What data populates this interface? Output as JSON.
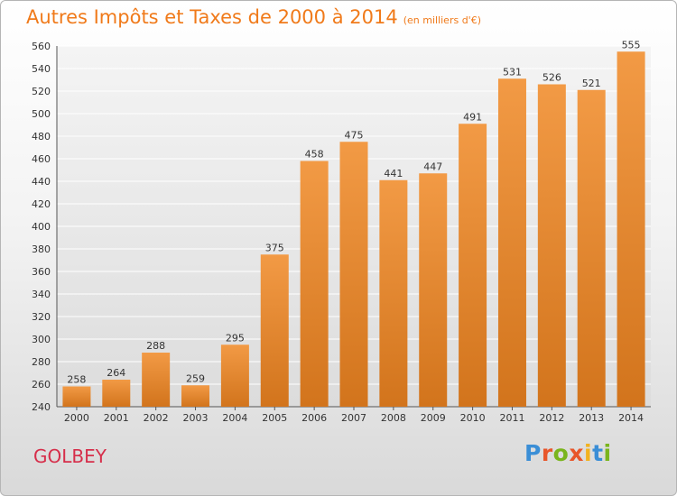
{
  "title": "Autres Impôts et Taxes de 2000 à 2014",
  "unit": "(en milliers d'€)",
  "city": "GOLBEY",
  "logo": "Proxiti",
  "colors": {
    "bar": "#f29a45",
    "bar_dark": "#d2741c",
    "title": "#f07a1a",
    "city": "#d62e4a"
  },
  "chart_data": {
    "type": "bar",
    "categories": [
      "2000",
      "2001",
      "2002",
      "2003",
      "2004",
      "2005",
      "2006",
      "2007",
      "2008",
      "2009",
      "2010",
      "2011",
      "2012",
      "2013",
      "2014"
    ],
    "values": [
      258,
      264,
      288,
      259,
      295,
      375,
      458,
      475,
      441,
      447,
      491,
      531,
      526,
      521,
      555
    ],
    "title": "Autres Impôts et Taxes de 2000 à 2014",
    "xlabel": "",
    "ylabel": "",
    "ylim": [
      240,
      560
    ],
    "yticks": [
      240,
      260,
      280,
      300,
      320,
      340,
      360,
      380,
      400,
      420,
      440,
      460,
      480,
      500,
      520,
      540,
      560
    ],
    "grid": true,
    "data_labels": true
  }
}
